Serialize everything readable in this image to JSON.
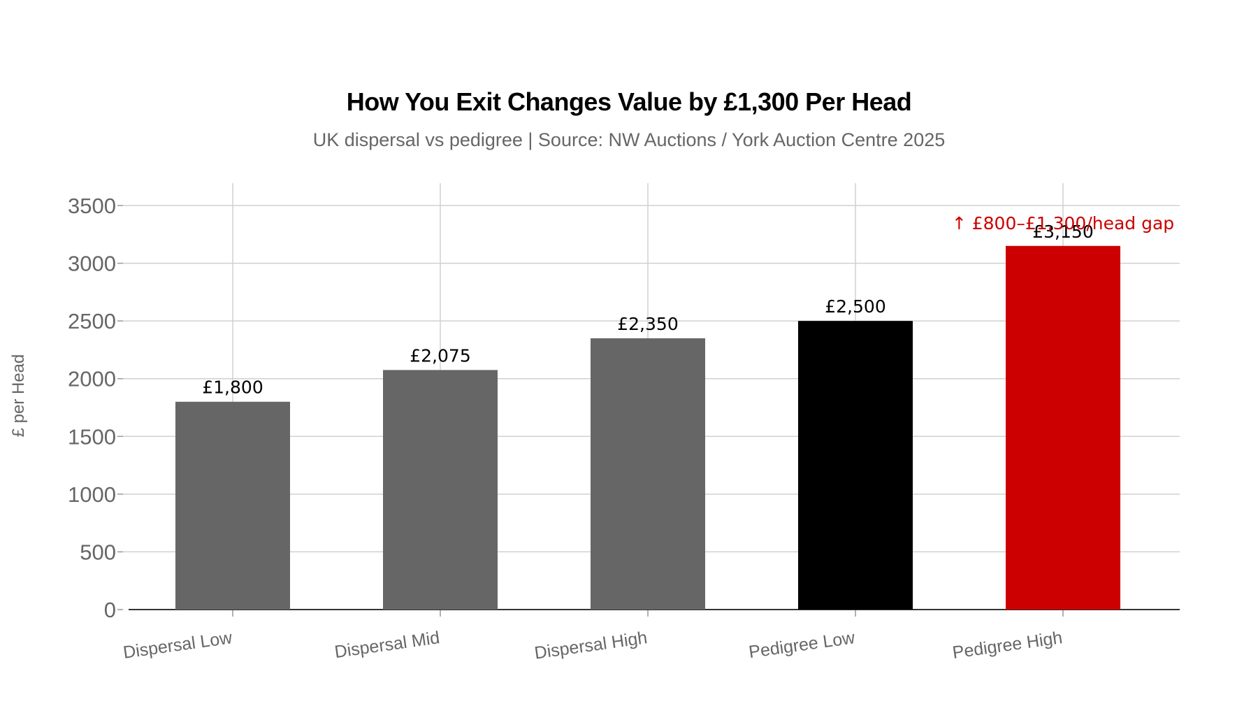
{
  "chart_data": {
    "type": "bar",
    "title": "How You Exit Changes Value by £1,300 Per Head",
    "subtitle": "UK dispersal vs pedigree | Source: NW Auctions / York Auction Centre 2025",
    "xlabel": "",
    "ylabel": "£ per Head",
    "ylim": [
      0,
      3700
    ],
    "yticks": [
      0,
      500,
      1000,
      1500,
      2000,
      2500,
      3000,
      3500
    ],
    "grid": true,
    "legend": "none",
    "categories": [
      "Dispersal Low",
      "Dispersal Mid",
      "Dispersal High",
      "Pedigree Low",
      "Pedigree High"
    ],
    "values": [
      1800,
      2075,
      2350,
      2500,
      3150
    ],
    "data_labels": [
      "£1,800",
      "£2,075",
      "£2,350",
      "£2,500",
      "£3,150"
    ],
    "colors": [
      "#666666",
      "#666666",
      "#666666",
      "#000000",
      "#cc0000"
    ],
    "annotation": {
      "text": "↑ £800–£1,300/head gap",
      "color": "#cc0000",
      "category": "Pedigree High",
      "value": 3350
    }
  }
}
